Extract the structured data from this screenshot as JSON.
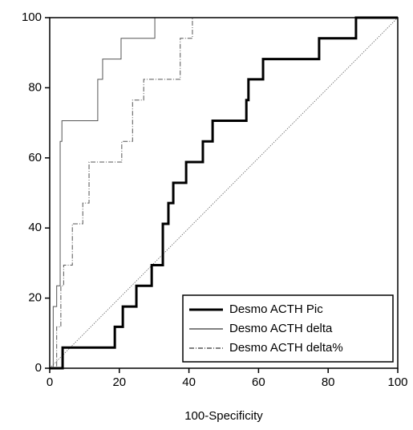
{
  "chart_data": {
    "type": "line",
    "x_label": "100-Specificity",
    "xlim": [
      0,
      100
    ],
    "ylim": [
      0,
      100
    ],
    "xticks": [
      0,
      20,
      40,
      60,
      80,
      100
    ],
    "yticks": [
      0,
      20,
      40,
      60,
      80,
      100
    ],
    "legend": "lower right",
    "diagonal": true,
    "series": [
      {
        "name": "Desmo ACTH Pic",
        "color": "#000000",
        "line_width": 3,
        "line_style": "solid",
        "x": [
          0,
          3.7,
          3.7,
          18.7,
          18.7,
          21,
          21,
          24.9,
          24.9,
          29.3,
          29.3,
          32.5,
          32.5,
          34.1,
          34.1,
          35.5,
          35.5,
          39.2,
          39.2,
          44,
          44,
          46.8,
          46.8,
          56.5,
          56.5,
          57.1,
          57.1,
          61.3,
          61.3,
          77.4,
          77.4,
          88,
          88,
          100
        ],
        "values": [
          0,
          0,
          5.9,
          5.9,
          11.8,
          11.8,
          17.6,
          17.6,
          23.5,
          23.5,
          29.4,
          29.4,
          41.2,
          41.2,
          47.1,
          47.1,
          52.9,
          52.9,
          58.8,
          58.8,
          64.7,
          64.7,
          70.6,
          70.6,
          76.5,
          76.5,
          82.4,
          82.4,
          88.2,
          88.2,
          94.1,
          94.1,
          100,
          100
        ]
      },
      {
        "name": "Desmo ACTH delta",
        "color": "#555555",
        "line_width": 1,
        "line_style": "solid",
        "x": [
          0,
          1,
          1,
          2,
          2,
          3,
          3,
          3.5,
          3.5,
          13.8,
          13.8,
          15.2,
          15.2,
          20.5,
          20.5,
          30.2,
          30.2,
          100
        ],
        "values": [
          0,
          0,
          17.6,
          17.6,
          23.5,
          23.5,
          64.7,
          64.7,
          70.6,
          70.6,
          82.4,
          82.4,
          88.2,
          88.2,
          94.1,
          94.1,
          100,
          100
        ]
      },
      {
        "name": "Desmo ACTH delta%",
        "color": "#555555",
        "line_width": 1,
        "line_style": "dashdot",
        "x": [
          0,
          2,
          2,
          3.2,
          3.2,
          4,
          4,
          6.5,
          6.5,
          9.5,
          9.5,
          11.3,
          11.3,
          20.7,
          20.7,
          23.8,
          23.8,
          27,
          27,
          37.5,
          37.5,
          41,
          41,
          100
        ],
        "values": [
          0,
          0,
          11.8,
          11.8,
          23.5,
          23.5,
          29.4,
          29.4,
          41.2,
          41.2,
          47.1,
          47.1,
          58.8,
          58.8,
          64.7,
          64.7,
          76.5,
          76.5,
          82.4,
          82.4,
          94.1,
          94.1,
          100,
          100
        ]
      }
    ]
  }
}
